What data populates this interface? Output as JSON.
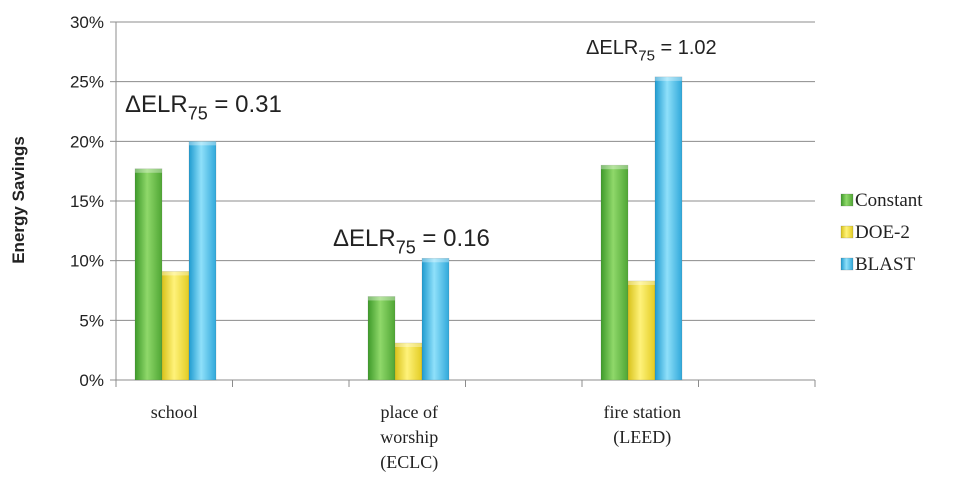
{
  "chart_data": {
    "type": "bar",
    "title": "",
    "xlabel": "",
    "ylabel": "Energy Savings",
    "ylim": [
      0,
      30
    ],
    "y_ticks": [
      "0%",
      "5%",
      "10%",
      "15%",
      "20%",
      "25%",
      "30%"
    ],
    "grid": true,
    "legend_position": "right",
    "categories": [
      [
        "school"
      ],
      [
        "place of",
        "worship",
        "(ECLC)"
      ],
      [
        "fire station",
        "(LEED)"
      ]
    ],
    "series": [
      {
        "name": "Constant",
        "values": [
          17.7,
          7.0,
          18.0
        ],
        "color": "#6cc24a"
      },
      {
        "name": "DOE-2",
        "values": [
          9.1,
          3.1,
          8.3
        ],
        "color": "#f2e03a"
      },
      {
        "name": "BLAST",
        "values": [
          20.0,
          10.2,
          25.4
        ],
        "color": "#4fc3e8"
      }
    ],
    "annotations": [
      {
        "prefix": "ΔELR",
        "subscript": "75",
        "suffix": " = 0.31",
        "category_index": 0
      },
      {
        "prefix": "ΔELR",
        "subscript": "75",
        "suffix": " = 0.16",
        "category_index": 1
      },
      {
        "prefix": "ΔELR",
        "subscript": "75",
        "suffix": " = 1.02",
        "category_index": 2
      }
    ]
  }
}
